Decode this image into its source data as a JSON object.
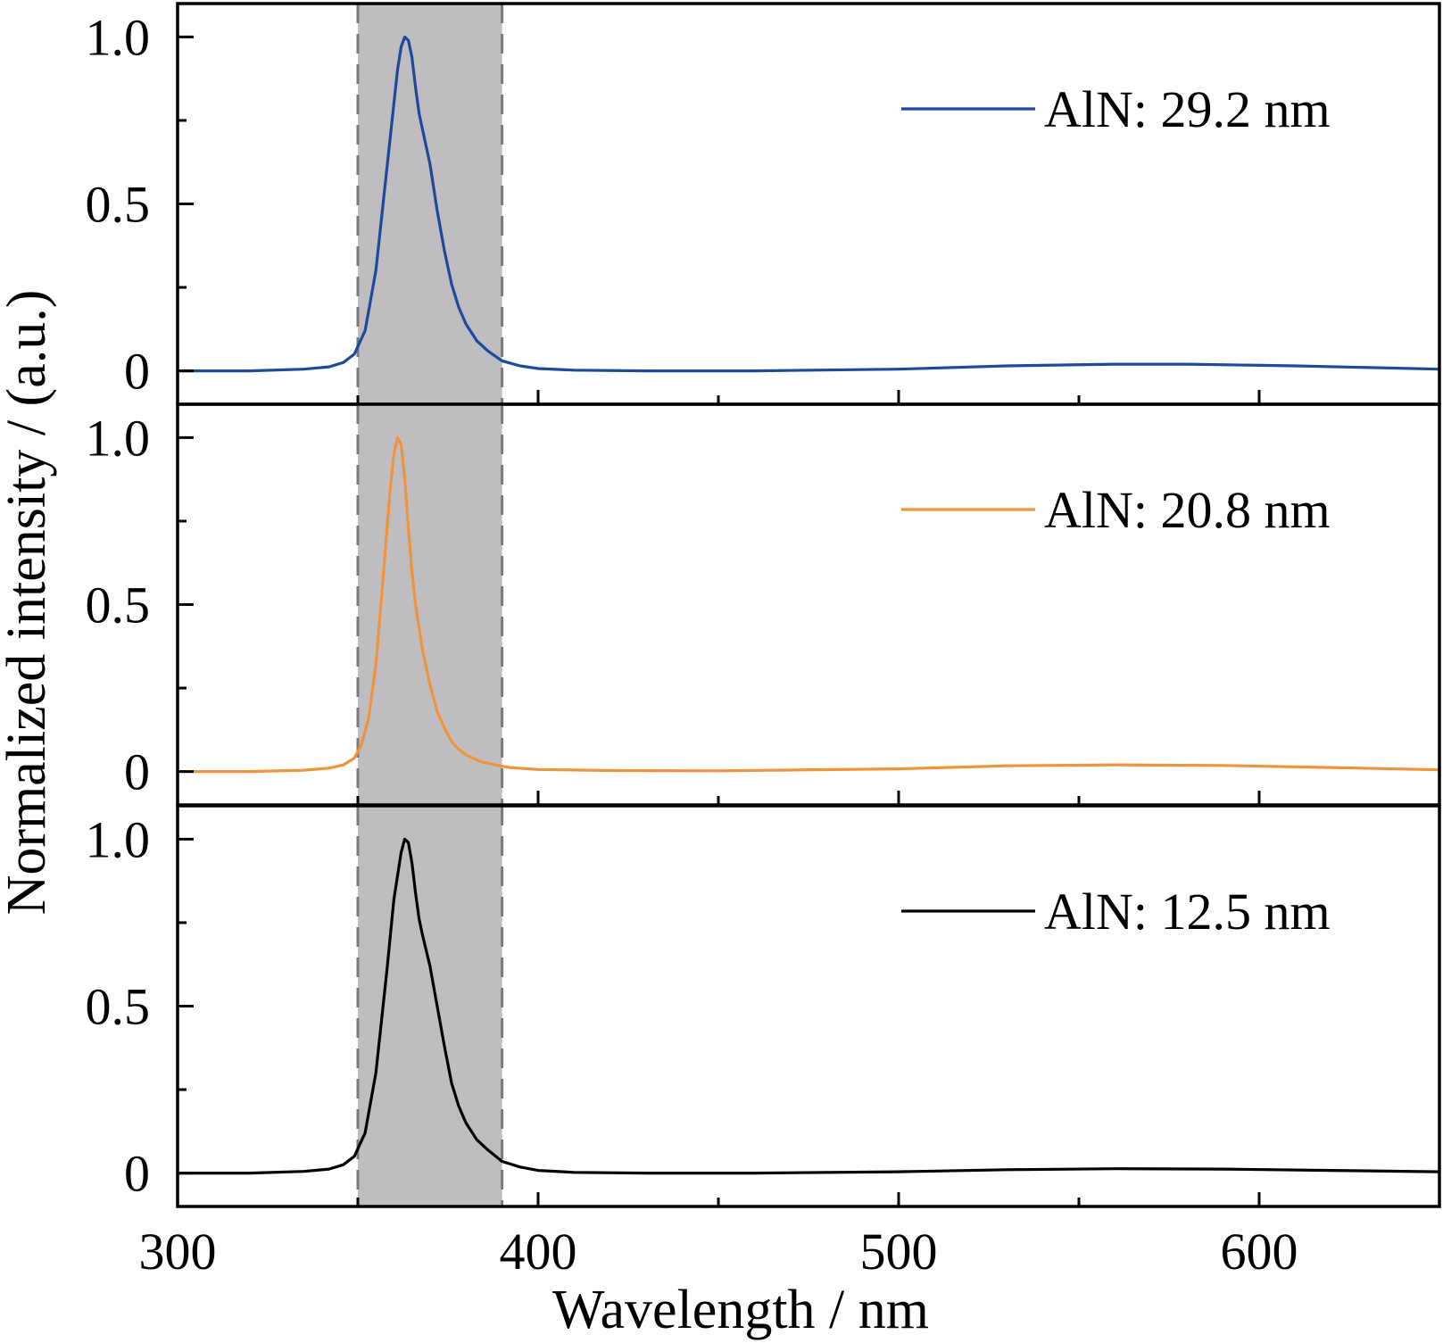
{
  "chart_data": {
    "type": "line",
    "layout": "3 vertically stacked panels sharing x axis",
    "xlabel": "Wavelength / nm",
    "ylabel": "Normalized intensity / (a.u.)",
    "xlim": [
      300,
      650
    ],
    "ylim": [
      -0.1,
      1.1
    ],
    "x_ticks": [
      300,
      400,
      500,
      600
    ],
    "x_minor_ticks": [
      350,
      450,
      550
    ],
    "y_ticks": [
      0,
      0.5,
      1.0
    ],
    "y_tick_labels": [
      "0",
      "0.5",
      "1.0"
    ],
    "y_minor_ticks": [
      0.25,
      0.75
    ],
    "shaded_band": {
      "x_range": [
        350,
        390
      ],
      "color": "#c0bdc1",
      "edges": "dashed",
      "edge_color": "#7a7a7a"
    },
    "legend_placement": "upper-right of each panel",
    "grid": false,
    "panels": [
      {
        "series": {
          "name": "AlN: 29.2 nm",
          "color": "#1f4a9c",
          "x": [
            300,
            320,
            335,
            342,
            346,
            349,
            352,
            355,
            358,
            361,
            362,
            363,
            364,
            365,
            366,
            367,
            368,
            370,
            372,
            374,
            376,
            378,
            380,
            383,
            386,
            390,
            395,
            400,
            410,
            430,
            460,
            500,
            530,
            560,
            580,
            610,
            650
          ],
          "y": [
            0.0,
            0.0,
            0.005,
            0.012,
            0.025,
            0.05,
            0.12,
            0.3,
            0.6,
            0.9,
            0.97,
            1.0,
            0.99,
            0.94,
            0.85,
            0.77,
            0.72,
            0.62,
            0.48,
            0.36,
            0.26,
            0.19,
            0.14,
            0.09,
            0.06,
            0.03,
            0.015,
            0.007,
            0.002,
            0.0,
            0.0,
            0.005,
            0.015,
            0.02,
            0.02,
            0.015,
            0.005
          ]
        }
      },
      {
        "series": {
          "name": "AlN: 20.8 nm",
          "color": "#f0943c",
          "x": [
            300,
            320,
            335,
            342,
            346,
            349,
            351,
            353,
            355,
            357,
            359,
            360,
            361,
            362,
            363,
            364,
            365,
            366,
            368,
            370,
            372,
            374,
            376,
            378,
            380,
            384,
            388,
            392,
            400,
            420,
            450,
            500,
            530,
            560,
            590,
            620,
            650
          ],
          "y": [
            0.0,
            0.0,
            0.004,
            0.01,
            0.02,
            0.04,
            0.08,
            0.16,
            0.32,
            0.58,
            0.85,
            0.95,
            1.0,
            0.98,
            0.88,
            0.73,
            0.6,
            0.5,
            0.36,
            0.26,
            0.18,
            0.13,
            0.09,
            0.066,
            0.05,
            0.03,
            0.02,
            0.012,
            0.006,
            0.003,
            0.002,
            0.008,
            0.017,
            0.02,
            0.018,
            0.012,
            0.005
          ]
        }
      },
      {
        "series": {
          "name": "AlN: 12.5 nm",
          "color": "#000000",
          "x": [
            300,
            320,
            335,
            342,
            346,
            349,
            352,
            355,
            358,
            360,
            362,
            363,
            364,
            365,
            366,
            367,
            368,
            370,
            372,
            374,
            376,
            378,
            380,
            383,
            386,
            390,
            395,
            400,
            410,
            430,
            460,
            500,
            530,
            560,
            590,
            620,
            650
          ],
          "y": [
            0.0,
            0.0,
            0.005,
            0.012,
            0.025,
            0.05,
            0.12,
            0.3,
            0.6,
            0.82,
            0.96,
            1.0,
            0.99,
            0.93,
            0.84,
            0.76,
            0.71,
            0.62,
            0.5,
            0.38,
            0.27,
            0.2,
            0.15,
            0.1,
            0.07,
            0.035,
            0.018,
            0.008,
            0.002,
            0.0,
            0.0,
            0.004,
            0.01,
            0.013,
            0.012,
            0.008,
            0.004
          ]
        }
      }
    ]
  }
}
